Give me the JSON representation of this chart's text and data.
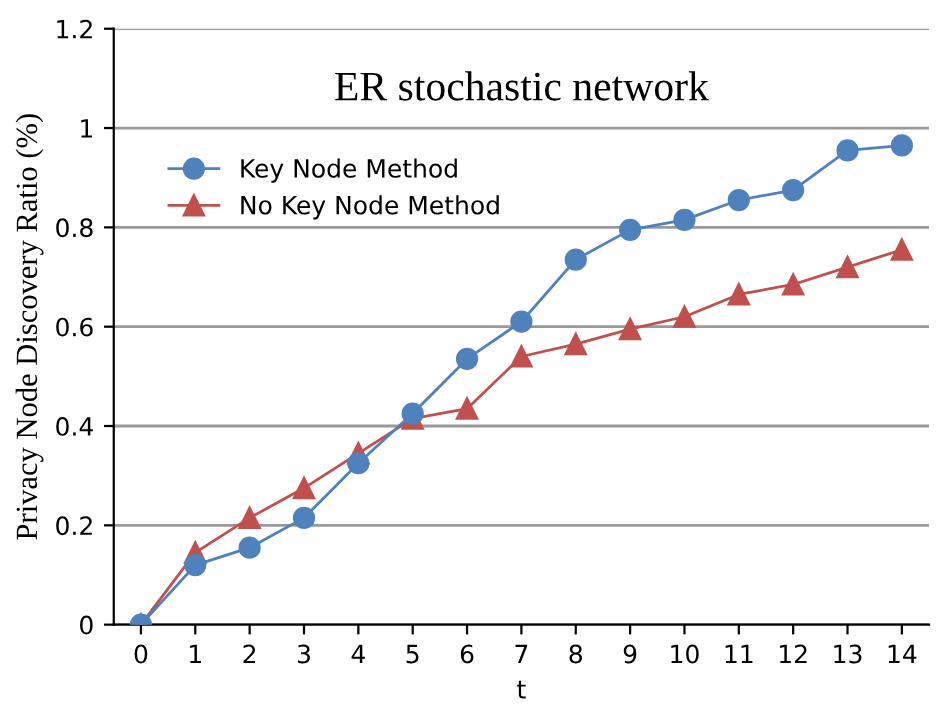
{
  "chart_data": {
    "type": "line",
    "title": "ER stochastic network",
    "xlabel": "t",
    "ylabel": "Privacy Node Discovery Ratio (%)",
    "categories": [
      "0",
      "1",
      "2",
      "3",
      "4",
      "5",
      "6",
      "7",
      "8",
      "9",
      "10",
      "11",
      "12",
      "13",
      "14"
    ],
    "series": [
      {
        "name": "Key Node Method",
        "color": "#4f81bd",
        "marker": "circle",
        "values": [
          0,
          0.12,
          0.155,
          0.215,
          0.325,
          0.425,
          0.535,
          0.61,
          0.735,
          0.795,
          0.815,
          0.855,
          0.875,
          0.955,
          0.965
        ]
      },
      {
        "name": "No Key Node Method",
        "color": "#c0504d",
        "marker": "triangle",
        "values": [
          0,
          0.145,
          0.215,
          0.275,
          0.345,
          0.415,
          0.435,
          0.54,
          0.565,
          0.595,
          0.62,
          0.665,
          0.685,
          0.72,
          0.755
        ]
      }
    ],
    "ylim": [
      0,
      1.2
    ],
    "yticks": [
      0,
      0.2,
      0.4,
      0.6,
      0.8,
      1,
      1.2
    ],
    "grid": "y",
    "legend": "top left",
    "line_style": "solid"
  }
}
